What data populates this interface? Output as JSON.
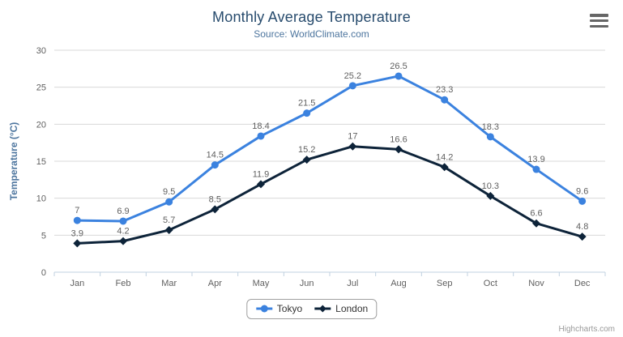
{
  "chart": {
    "title": "Monthly Average Temperature",
    "subtitle": "Source: WorldClimate.com",
    "credits_label": "Highcharts.com",
    "export_icon": "hamburger-icon"
  },
  "chart_data": {
    "type": "line",
    "title": "Monthly Average Temperature",
    "subtitle": "Source: WorldClimate.com",
    "xlabel": "",
    "ylabel": "Temperature (°C)",
    "ylim": [
      0,
      30
    ],
    "yticks": [
      0,
      5,
      10,
      15,
      20,
      25,
      30
    ],
    "grid": true,
    "legend_position": "bottom-center",
    "data_labels": true,
    "categories": [
      "Jan",
      "Feb",
      "Mar",
      "Apr",
      "May",
      "Jun",
      "Jul",
      "Aug",
      "Sep",
      "Oct",
      "Nov",
      "Dec"
    ],
    "series": [
      {
        "name": "Tokyo",
        "color": "#3b82df",
        "marker": "circle",
        "values": [
          7,
          6.9,
          9.5,
          14.5,
          18.4,
          21.5,
          25.2,
          26.5,
          23.3,
          18.3,
          13.9,
          9.6
        ]
      },
      {
        "name": "London",
        "color": "#0d2339",
        "marker": "diamond",
        "values": [
          3.9,
          4.2,
          5.7,
          8.5,
          11.9,
          15.2,
          17,
          16.6,
          14.2,
          10.3,
          6.6,
          4.8
        ]
      }
    ]
  },
  "theme": {
    "background": "#ffffff",
    "title_color": "#274b6d",
    "subtitle_color": "#4d759e",
    "axis_label_color": "#606060",
    "axis_title_color": "#4d759e",
    "grid_color": "#d8d8d8",
    "axis_line_color": "#c0d0e0",
    "data_label_color": "#606060",
    "legend_text_color": "#333333",
    "legend_border_color": "#a0a0a0",
    "credits_color": "#999999",
    "export_icon_color": "#666666"
  }
}
